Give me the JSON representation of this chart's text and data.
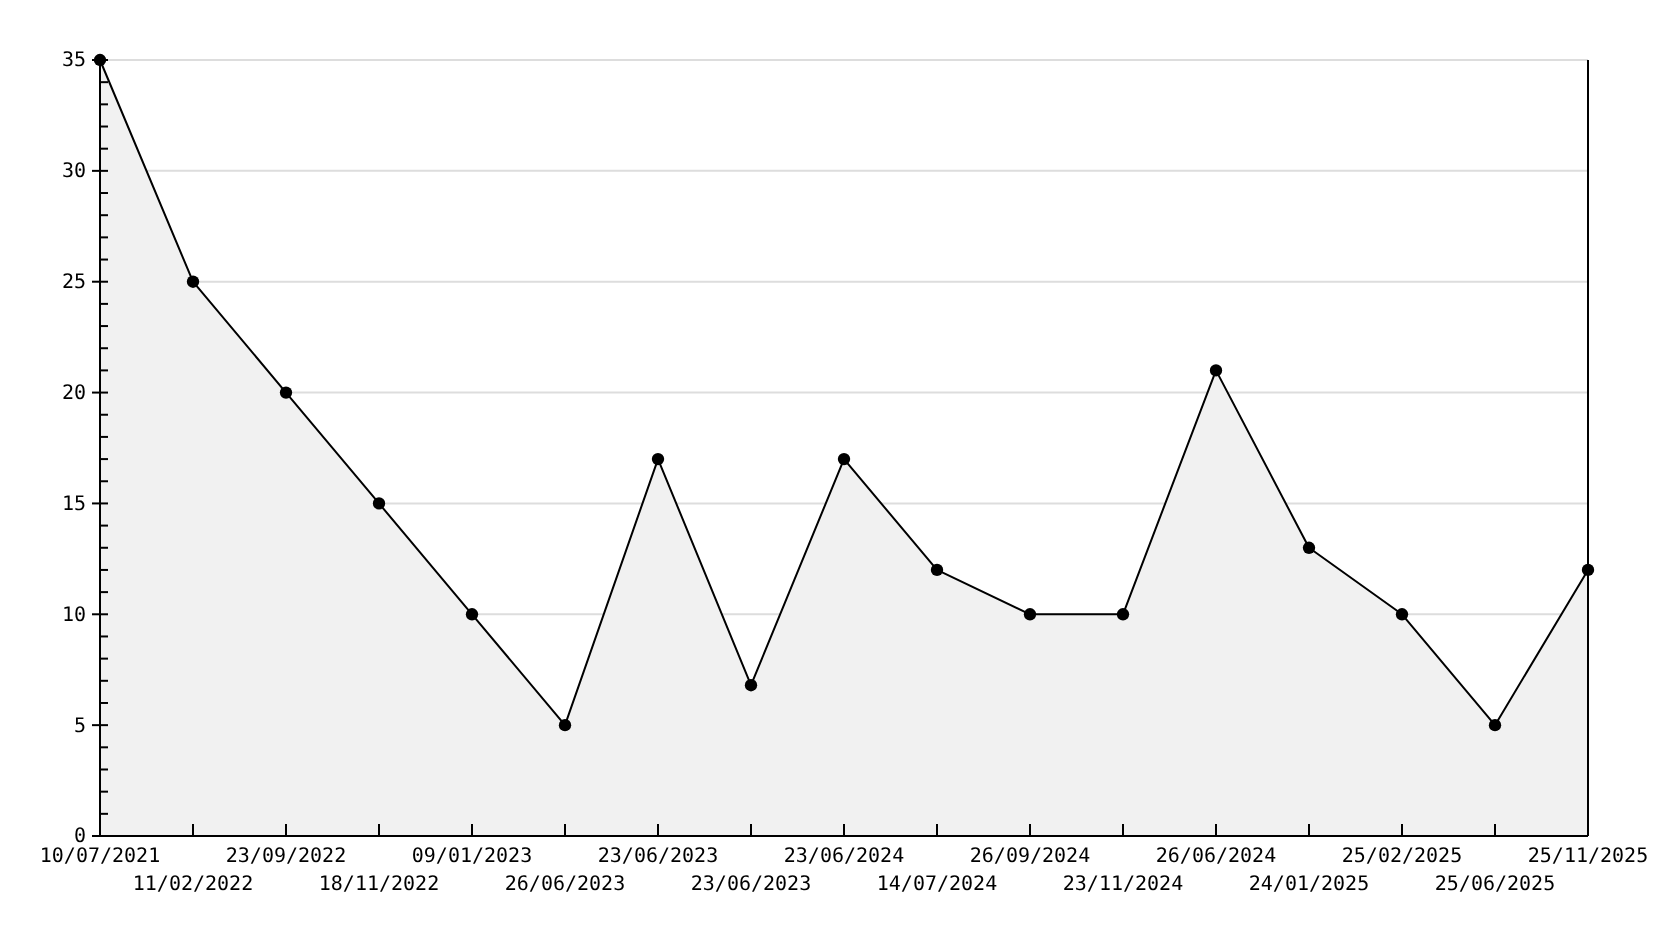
{
  "chart_data": {
    "type": "area",
    "categories": [
      "10/07/2021",
      "11/02/2022",
      "23/09/2022",
      "18/11/2022",
      "09/01/2023",
      "26/06/2023",
      "23/06/2023",
      "23/06/2023",
      "23/06/2024",
      "14/07/2024",
      "26/09/2024",
      "23/11/2024",
      "26/06/2024",
      "24/01/2025",
      "25/02/2025",
      "25/06/2025",
      "25/11/2025"
    ],
    "series": [
      {
        "color": "#000000",
        "values": [
          35,
          25,
          20,
          15,
          10,
          5,
          17,
          6.8,
          17,
          12,
          10,
          10,
          21,
          13,
          10,
          5,
          12
        ]
      }
    ],
    "ylim": [
      0,
      35
    ],
    "yticks": [
      0,
      {
        "value": 1,
        "label": null
      },
      {
        "value": 2,
        "label": null
      },
      {
        "value": 3,
        "label": null
      },
      {
        "value": 4,
        "label": null
      },
      5,
      {
        "value": 6,
        "label": null
      },
      {
        "value": 7,
        "label": null
      },
      {
        "value": 8,
        "label": null
      },
      {
        "value": 9,
        "label": null
      },
      10,
      {
        "value": 11,
        "label": null
      },
      {
        "value": 12,
        "label": null
      },
      {
        "value": 13,
        "label": null
      },
      {
        "value": 14,
        "label": null
      },
      15,
      {
        "value": 16,
        "label": null
      },
      {
        "value": 17,
        "label": null
      },
      {
        "value": 18,
        "label": null
      },
      {
        "value": 19,
        "label": null
      },
      20,
      {
        "value": 21,
        "label": null
      },
      {
        "value": 22,
        "label": null
      },
      {
        "value": 23,
        "label": null
      },
      {
        "value": 24,
        "label": null
      },
      25,
      {
        "value": 26,
        "label": null
      },
      {
        "value": 27,
        "label": null
      },
      {
        "value": 28,
        "label": null
      },
      {
        "value": 29,
        "label": null
      },
      30,
      {
        "value": 31,
        "label": null
      },
      {
        "value": 32,
        "label": null
      },
      {
        "value": 33,
        "label": null
      },
      {
        "value": 34,
        "label": null
      },
      35
    ],
    "grid": "y",
    "marker": "circle",
    "line_style": "solid"
  }
}
